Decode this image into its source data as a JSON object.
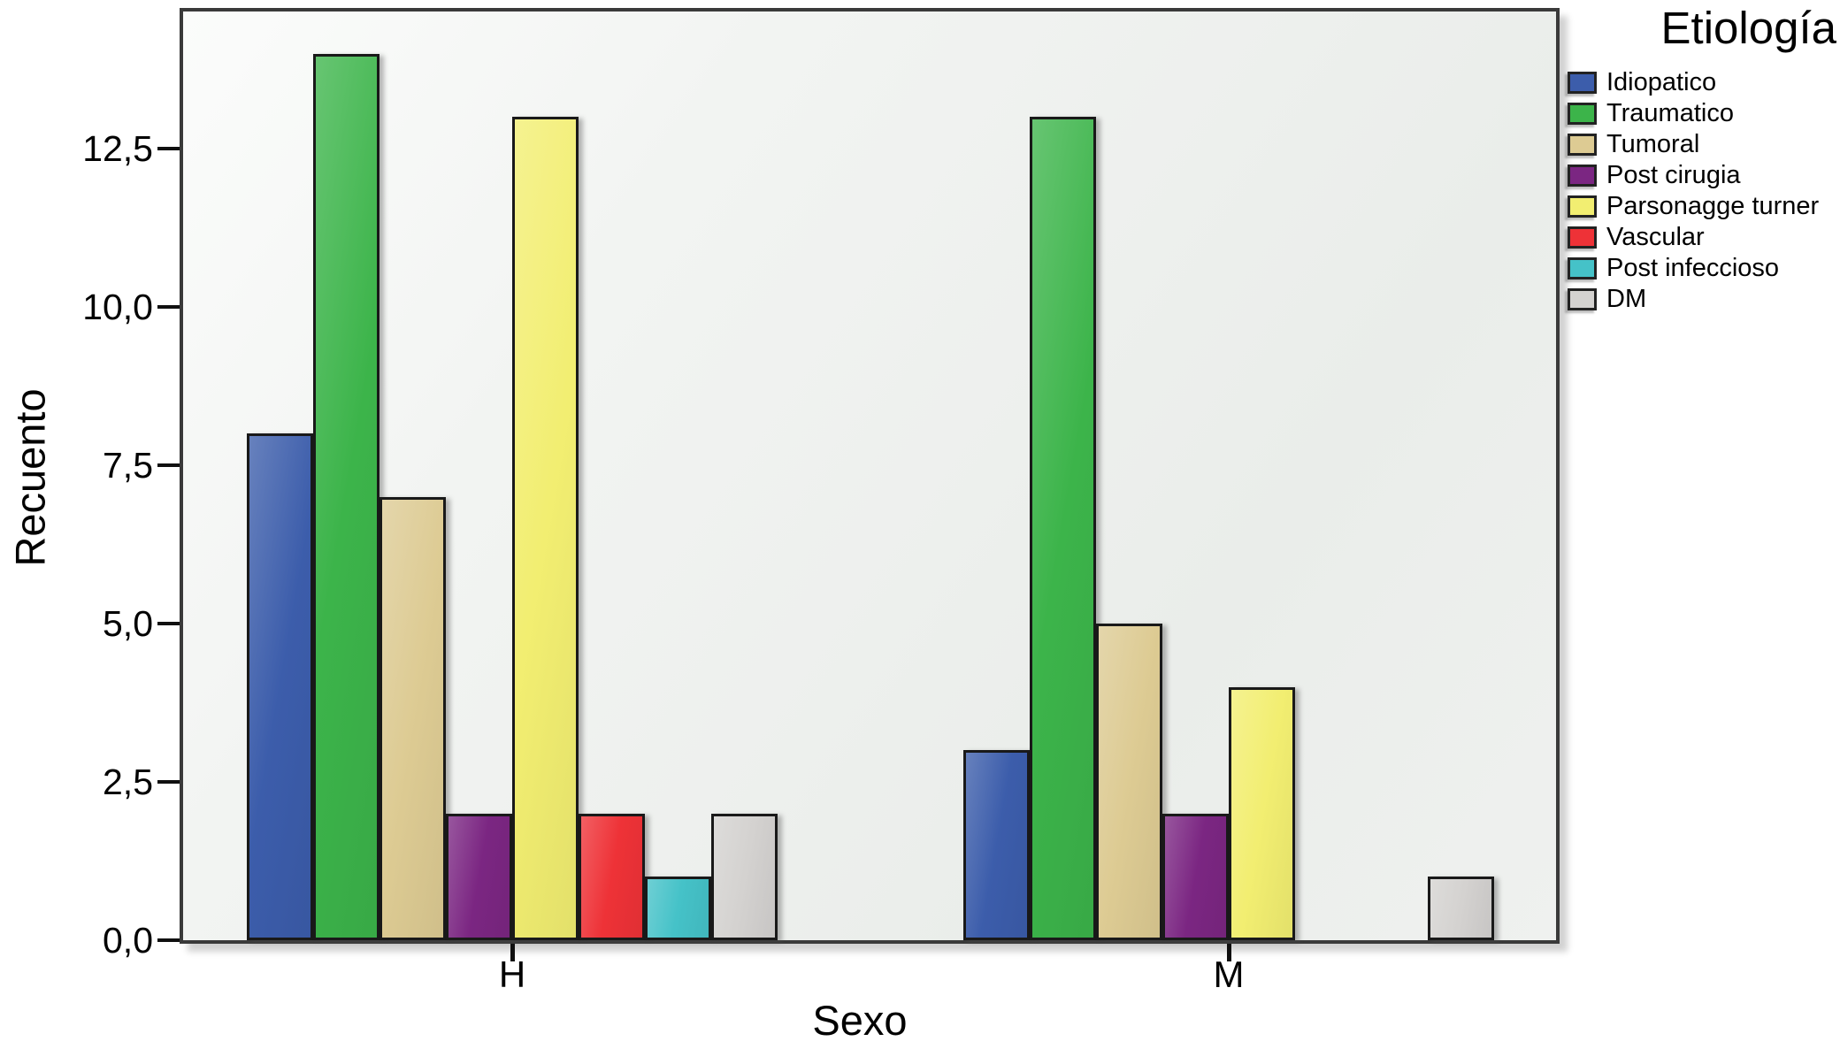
{
  "chart_data": {
    "type": "bar",
    "title": "Etiología",
    "xlabel": "Sexo",
    "ylabel": "Recuento",
    "categories": [
      "H",
      "M"
    ],
    "series": [
      {
        "name": "Idiopatico",
        "color": "#3c5dab",
        "values": [
          8,
          3
        ]
      },
      {
        "name": "Traumatico",
        "color": "#3cb44a",
        "values": [
          14,
          13
        ]
      },
      {
        "name": "Tumoral",
        "color": "#ddcb93",
        "values": [
          7,
          5
        ]
      },
      {
        "name": "Post cirugia",
        "color": "#7b2682",
        "values": [
          2,
          2
        ]
      },
      {
        "name": "Parsonagge turner",
        "color": "#f2ee71",
        "values": [
          13,
          4
        ]
      },
      {
        "name": "Vascular",
        "color": "#ee3237",
        "values": [
          2,
          0
        ]
      },
      {
        "name": "Post infeccioso",
        "color": "#45c2c8",
        "values": [
          1,
          0
        ]
      },
      {
        "name": "DM",
        "color": "#d4d2d0",
        "values": [
          2,
          1
        ]
      }
    ],
    "yticks": [
      {
        "value": 0,
        "label": "0,0"
      },
      {
        "value": 2.5,
        "label": "2,5"
      },
      {
        "value": 5,
        "label": "5,0"
      },
      {
        "value": 7.5,
        "label": "7,5"
      },
      {
        "value": 10,
        "label": "10,0"
      },
      {
        "value": 12.5,
        "label": "12,5"
      }
    ],
    "ylim": [
      0,
      14.66
    ],
    "grid": false,
    "legend_position": "right"
  }
}
